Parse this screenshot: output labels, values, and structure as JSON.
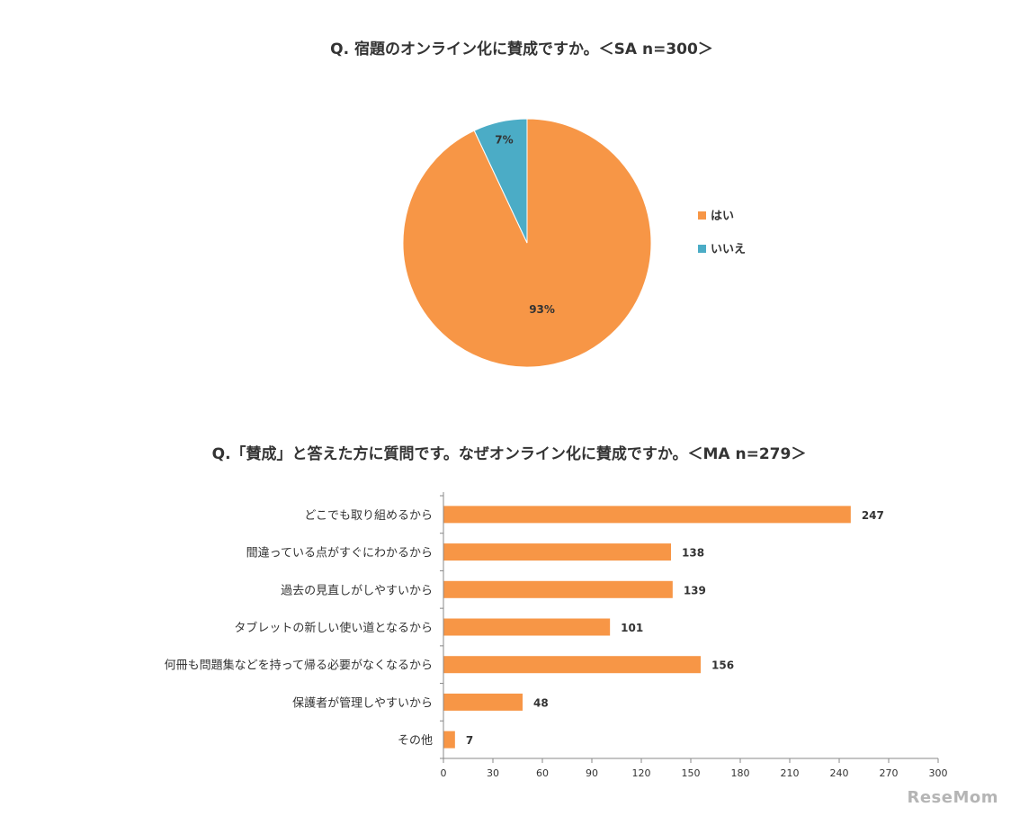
{
  "chart_data": [
    {
      "type": "pie",
      "title": "Q. 宿題のオンライン化に賛成ですか。＜SA n=300＞",
      "slices": [
        {
          "label": "はい",
          "value": 93,
          "display": "93%",
          "color": "#F79646"
        },
        {
          "label": "いいえ",
          "value": 7,
          "display": "7%",
          "color": "#4BACC6"
        }
      ],
      "legend_position": "right"
    },
    {
      "type": "bar",
      "orientation": "horizontal",
      "title": "Q.「賛成」と答えた方に質問です。なぜオンライン化に賛成ですか。＜MA n=279＞",
      "categories": [
        "どこでも取り組めるから",
        "間違っている点がすぐにわかるから",
        "過去の見直しがしやすいから",
        "タブレットの新しい使い道となるから",
        "何冊も問題集などを持って帰る必要がなくなるから",
        "保護者が管理しやすいから",
        "その他"
      ],
      "values": [
        247,
        138,
        139,
        101,
        156,
        48,
        7
      ],
      "xlim": [
        0,
        300
      ],
      "xticks": [
        0,
        30,
        60,
        90,
        120,
        150,
        180,
        210,
        240,
        270,
        300
      ],
      "bar_color": "#F79646",
      "grid": false
    }
  ],
  "watermark": "ReseMom"
}
